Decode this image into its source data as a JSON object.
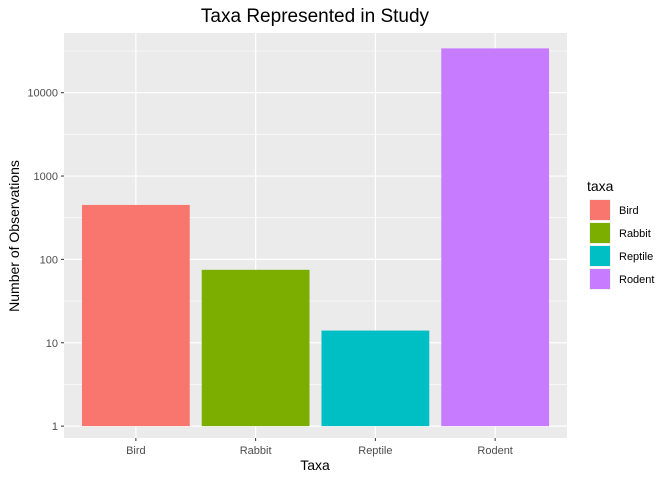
{
  "chart_data": {
    "type": "bar",
    "title": "Taxa Represented in Study",
    "xlabel": "Taxa",
    "ylabel": "Number of Observations",
    "categories": [
      "Bird",
      "Rabbit",
      "Reptile",
      "Rodent"
    ],
    "values": [
      450,
      75,
      14,
      34000
    ],
    "y_scale": "log10",
    "y_ticks": [
      1,
      10,
      100,
      1000,
      10000
    ],
    "y_tick_labels": [
      "1",
      "10",
      "100",
      "1000",
      "10000"
    ],
    "ylim": [
      0.72,
      52000
    ],
    "grid": true,
    "legend": {
      "title": "taxa",
      "position": "right",
      "entries": [
        "Bird",
        "Rabbit",
        "Reptile",
        "Rodent"
      ]
    },
    "colors": [
      "#F8766D",
      "#7CAE00",
      "#00BFC4",
      "#C77CFF"
    ],
    "panel_background": "#EBEBEB",
    "grid_color": "#FFFFFF"
  }
}
